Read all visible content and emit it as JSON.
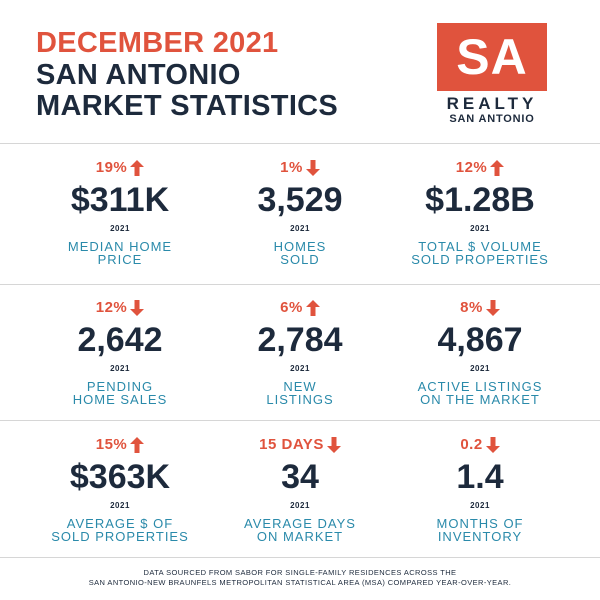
{
  "header": {
    "line1": "DECEMBER 2021",
    "line2": "SAN ANTONIO",
    "line3": "MARKET STATISTICS"
  },
  "logo": {
    "mark": "SA",
    "name": "REALTY",
    "tagline": "SAN ANTONIO"
  },
  "colors": {
    "accent": "#e0533d",
    "navy": "#1d2a3c",
    "teal": "#2a8aaa"
  },
  "stats": [
    {
      "change": "19%",
      "direction": "up",
      "value": "$311K",
      "year": "2021",
      "label1": "MEDIAN HOME",
      "label2": "PRICE"
    },
    {
      "change": "1%",
      "direction": "down",
      "value": "3,529",
      "year": "2021",
      "label1": "HOMES",
      "label2": "SOLD"
    },
    {
      "change": "12%",
      "direction": "up",
      "value": "$1.28B",
      "year": "2021",
      "label1": "TOTAL $ VOLUME",
      "label2": "SOLD PROPERTIES"
    },
    {
      "change": "12%",
      "direction": "down",
      "value": "2,642",
      "year": "2021",
      "label1": "PENDING",
      "label2": "HOME SALES"
    },
    {
      "change": "6%",
      "direction": "up",
      "value": "2,784",
      "year": "2021",
      "label1": "NEW",
      "label2": "LISTINGS"
    },
    {
      "change": "8%",
      "direction": "down",
      "value": "4,867",
      "year": "2021",
      "label1": "ACTIVE LISTINGS",
      "label2": "ON THE MARKET"
    },
    {
      "change": "15%",
      "direction": "up",
      "value": "$363K",
      "year": "2021",
      "label1": "AVERAGE $ OF",
      "label2": "SOLD PROPERTIES"
    },
    {
      "change": "15 DAYS",
      "direction": "down",
      "value": "34",
      "year": "2021",
      "label1": "AVERAGE DAYS",
      "label2": "ON MARKET"
    },
    {
      "change": "0.2",
      "direction": "down",
      "value": "1.4",
      "year": "2021",
      "label1": "MONTHS OF",
      "label2": "INVENTORY"
    }
  ],
  "footer": {
    "line1": "DATA SOURCED FROM SABOR FOR SINGLE-FAMILY RESIDENCES ACROSS THE",
    "line2": "SAN ANTONIO-NEW BRAUNFELS METROPOLITAN STATISTICAL AREA (MSA) COMPARED YEAR-OVER-YEAR."
  }
}
